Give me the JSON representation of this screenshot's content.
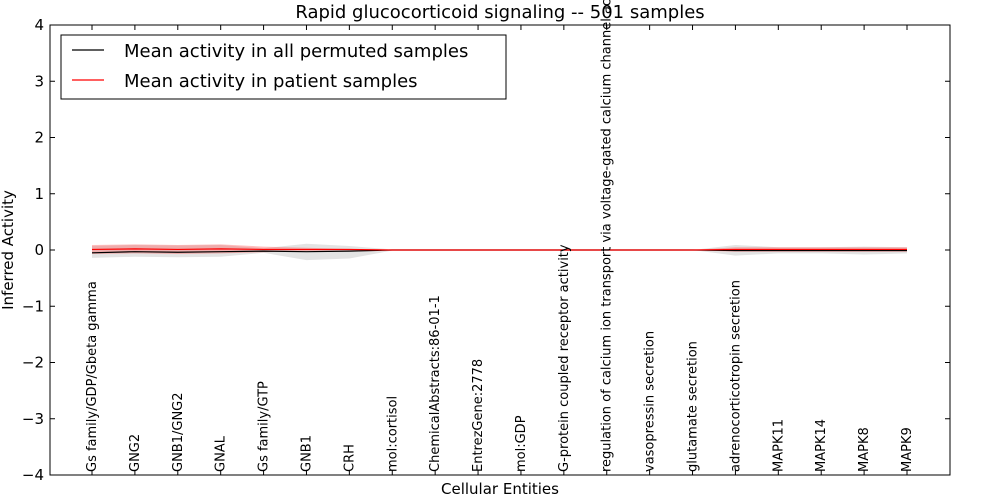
{
  "chart_data": {
    "type": "line",
    "title": "Rapid glucocorticoid signaling -- 501 samples",
    "xlabel": "Cellular Entities",
    "ylabel": "Inferred Activity",
    "ylim": [
      -4,
      4
    ],
    "yticks": [
      "−4",
      "−3",
      "−2",
      "−1",
      "0",
      "1",
      "2",
      "3",
      "4"
    ],
    "ytick_values": [
      -4,
      -3,
      -2,
      -1,
      0,
      1,
      2,
      3,
      4
    ],
    "categories": [
      "Gs family/GDP/Gbeta gamma",
      "GNG2",
      "GNB1/GNG2",
      "GNAL",
      "Gs family/GTP",
      "GNB1",
      "CRH",
      "mol:cortisol",
      "ChemicalAbstracts:86-01-1",
      "EntrezGene:2778",
      "mol:GDP",
      "G-protein coupled receptor activity",
      "regulation of calcium ion transport via voltage-gated calcium channel activity",
      "vasopressin secretion",
      "glutamate secretion",
      "adrenocorticotropin secretion",
      "MAPK11",
      "MAPK14",
      "MAPK8",
      "MAPK9"
    ],
    "series": [
      {
        "name": "Mean activity in all permuted samples",
        "color": "#000000",
        "values": [
          -0.05,
          -0.03,
          -0.04,
          -0.03,
          -0.02,
          -0.03,
          -0.02,
          0.0,
          0.0,
          0.0,
          0.0,
          0.0,
          0.0,
          0.0,
          0.0,
          -0.01,
          -0.01,
          -0.01,
          -0.01,
          -0.01
        ],
        "band_lower": [
          -0.14,
          -0.12,
          -0.13,
          -0.12,
          -0.05,
          -0.18,
          -0.15,
          -0.01,
          0.0,
          0.0,
          0.0,
          0.0,
          0.0,
          0.0,
          0.0,
          -0.1,
          -0.06,
          -0.06,
          -0.08,
          -0.06
        ],
        "band_upper": [
          0.07,
          0.09,
          0.08,
          0.09,
          0.03,
          0.11,
          0.07,
          0.01,
          0.0,
          0.0,
          0.0,
          0.0,
          0.0,
          0.0,
          0.0,
          0.09,
          0.05,
          0.05,
          0.06,
          0.05
        ]
      },
      {
        "name": "Mean activity in patient samples",
        "color": "#ff0000",
        "values": [
          0.01,
          0.02,
          0.01,
          0.02,
          0.01,
          0.01,
          0.01,
          0.0,
          0.0,
          0.0,
          0.0,
          0.0,
          0.0,
          0.0,
          0.0,
          0.01,
          0.01,
          0.01,
          0.01,
          0.01
        ],
        "band_lower": [
          -0.07,
          -0.06,
          -0.07,
          -0.06,
          -0.04,
          -0.02,
          -0.01,
          0.0,
          0.0,
          0.0,
          0.0,
          0.0,
          0.0,
          0.0,
          0.0,
          -0.03,
          -0.03,
          -0.03,
          -0.03,
          -0.03
        ],
        "band_upper": [
          0.09,
          0.1,
          0.09,
          0.1,
          0.06,
          0.04,
          0.02,
          0.0,
          0.0,
          0.0,
          0.0,
          0.0,
          0.0,
          0.0,
          0.0,
          0.05,
          0.05,
          0.05,
          0.05,
          0.05
        ]
      }
    ],
    "legend_position": "top-left"
  }
}
